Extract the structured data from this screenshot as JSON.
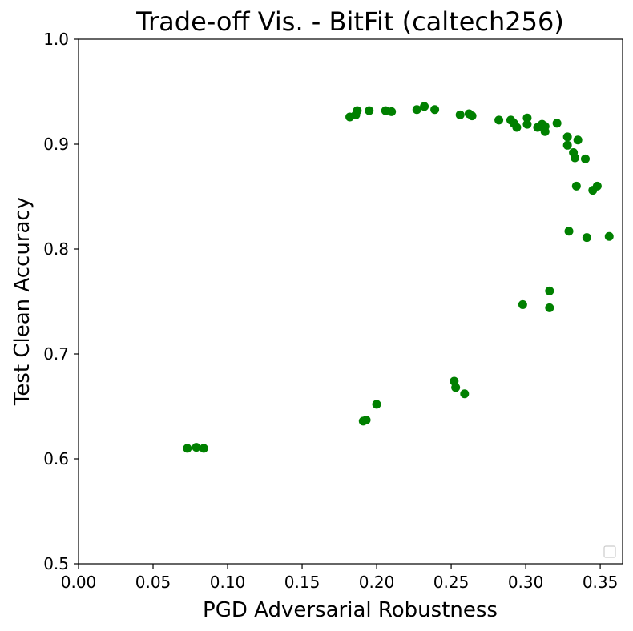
{
  "chart_data": {
    "type": "scatter",
    "title": "Trade-off Vis. - BitFit (caltech256)",
    "xlabel": "PGD Adversarial Robustness",
    "ylabel": "Test Clean Accuracy",
    "xlim": [
      0.0,
      0.365
    ],
    "ylim": [
      0.5,
      1.0
    ],
    "xticks": [
      "0.00",
      "0.05",
      "0.10",
      "0.15",
      "0.20",
      "0.25",
      "0.30",
      "0.35"
    ],
    "yticks": [
      "0.5",
      "0.6",
      "0.7",
      "0.8",
      "0.9",
      "1.0"
    ],
    "grid": false,
    "legend": "lower-right",
    "color": "#008000",
    "series": [
      {
        "points": [
          [
            0.073,
            0.61
          ],
          [
            0.079,
            0.611
          ],
          [
            0.084,
            0.61
          ],
          [
            0.191,
            0.636
          ],
          [
            0.193,
            0.637
          ],
          [
            0.2,
            0.652
          ],
          [
            0.252,
            0.674
          ],
          [
            0.253,
            0.668
          ],
          [
            0.259,
            0.662
          ],
          [
            0.298,
            0.747
          ],
          [
            0.316,
            0.744
          ],
          [
            0.316,
            0.76
          ],
          [
            0.182,
            0.926
          ],
          [
            0.186,
            0.928
          ],
          [
            0.187,
            0.932
          ],
          [
            0.195,
            0.932
          ],
          [
            0.206,
            0.932
          ],
          [
            0.21,
            0.931
          ],
          [
            0.227,
            0.933
          ],
          [
            0.232,
            0.936
          ],
          [
            0.239,
            0.933
          ],
          [
            0.256,
            0.928
          ],
          [
            0.262,
            0.929
          ],
          [
            0.264,
            0.927
          ],
          [
            0.282,
            0.923
          ],
          [
            0.29,
            0.923
          ],
          [
            0.292,
            0.92
          ],
          [
            0.294,
            0.916
          ],
          [
            0.301,
            0.925
          ],
          [
            0.301,
            0.919
          ],
          [
            0.308,
            0.916
          ],
          [
            0.311,
            0.919
          ],
          [
            0.313,
            0.912
          ],
          [
            0.313,
            0.917
          ],
          [
            0.321,
            0.92
          ],
          [
            0.328,
            0.907
          ],
          [
            0.328,
            0.899
          ],
          [
            0.332,
            0.892
          ],
          [
            0.333,
            0.887
          ],
          [
            0.335,
            0.904
          ],
          [
            0.34,
            0.886
          ],
          [
            0.334,
            0.86
          ],
          [
            0.345,
            0.856
          ],
          [
            0.348,
            0.86
          ],
          [
            0.329,
            0.817
          ],
          [
            0.341,
            0.811
          ],
          [
            0.356,
            0.812
          ]
        ]
      }
    ]
  }
}
